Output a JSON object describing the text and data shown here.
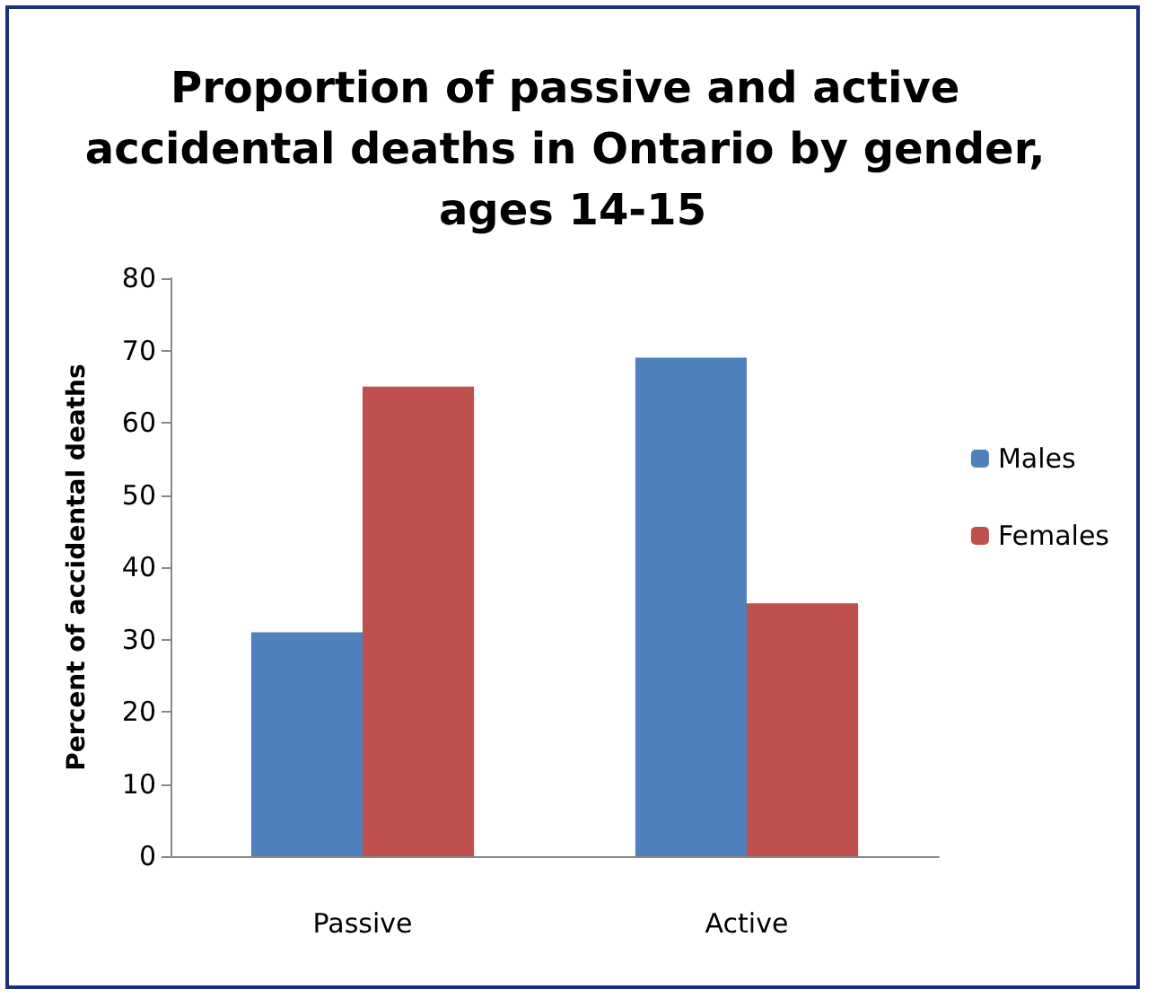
{
  "chart_data": {
    "type": "bar",
    "title": "Proportion of passive and active accidental deaths in Ontario by gender, ages 14-15",
    "ylabel": "Percent of accidental deaths",
    "categories": [
      "Passive",
      "Active"
    ],
    "series": [
      {
        "name": "Males",
        "color": "#4f81bd",
        "values": [
          31,
          69
        ]
      },
      {
        "name": "Females",
        "color": "#c0504d",
        "values": [
          65,
          35
        ]
      }
    ],
    "ylim": [
      0,
      80
    ],
    "yticks": [
      0,
      10,
      20,
      30,
      40,
      50,
      60,
      70,
      80
    ],
    "grid": false,
    "legend": "right"
  }
}
